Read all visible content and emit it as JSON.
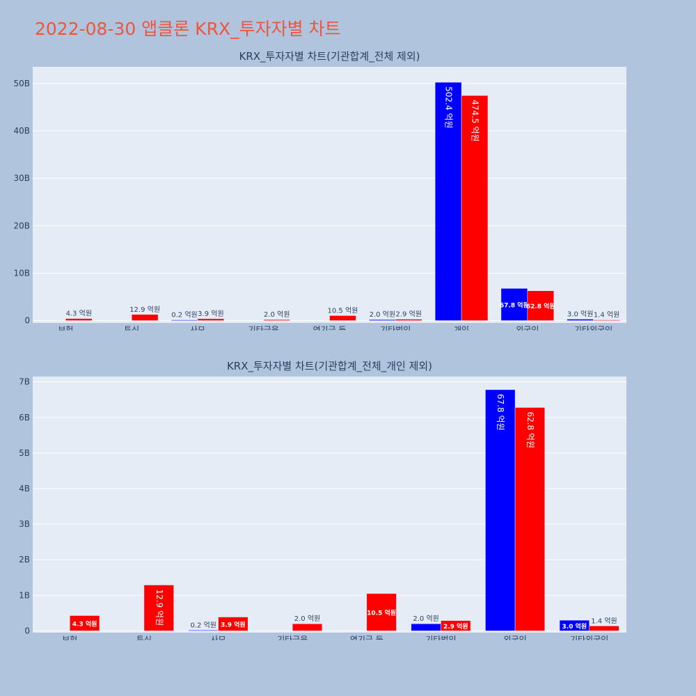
{
  "page": {
    "title": "2022-08-30 앱클론 KRX_투자자별 차트"
  },
  "colors": {
    "buy": "#0000ff",
    "sell": "#ff0000",
    "plot_bg": "#e5ecf6",
    "grid": "#ffffff",
    "text": "#2a3f5f"
  },
  "chart_data": [
    {
      "type": "bar",
      "title": "KRX_투자자별 차트(기관합계_전체 제외)",
      "categories": [
        "보험",
        "투신",
        "사모",
        "기타금융",
        "연기금 등",
        "기타법인",
        "개인",
        "외국인",
        "기타외국인"
      ],
      "series": [
        {
          "values": [
            0,
            0,
            20000000,
            0,
            0,
            200000000,
            50240000000,
            6780000000,
            300000000
          ],
          "labels": [
            "",
            "",
            "0.2 억원",
            "",
            "",
            "2.0 억원",
            "502.4 억원",
            "67.8 억원",
            "3.0 억원"
          ]
        },
        {
          "values": [
            430000000,
            1290000000,
            390000000,
            200000000,
            1050000000,
            290000000,
            47450000000,
            6280000000,
            140000000
          ],
          "labels": [
            "4.3 억원",
            "12.9 억원",
            "3.9 억원",
            "2.0 억원",
            "10.5 억원",
            "2.9 억원",
            "474.5 억원",
            "62.8 억원",
            "1.4 억원"
          ]
        }
      ],
      "ylim": [
        -500000000,
        53500000000
      ],
      "yticks": [
        0,
        10000000000,
        20000000000,
        30000000000,
        40000000000,
        50000000000
      ],
      "ytick_labels": [
        "0",
        "10B",
        "20B",
        "30B",
        "40B",
        "50B"
      ],
      "grid": true,
      "legend": "none"
    },
    {
      "type": "bar",
      "title": "KRX_투자자별 차트(기관합계_전체_개인 제외)",
      "categories": [
        "보험",
        "투신",
        "사모",
        "기타금융",
        "연기금 등",
        "기타법인",
        "외국인",
        "기타외국인"
      ],
      "series": [
        {
          "values": [
            0,
            0,
            20000000,
            0,
            0,
            200000000,
            6780000000,
            300000000
          ],
          "labels": [
            "",
            "",
            "0.2 억원",
            "",
            "",
            "2.0 억원",
            "67.8 억원",
            "3.0 억원"
          ]
        },
        {
          "values": [
            430000000,
            1290000000,
            390000000,
            200000000,
            1050000000,
            290000000,
            6280000000,
            140000000
          ],
          "labels": [
            "4.3 억원",
            "12.9 억원",
            "3.9 억원",
            "2.0 억원",
            "10.5 억원",
            "2.9 억원",
            "62.8 억원",
            "1.4 억원"
          ]
        }
      ],
      "ylim": [
        -50000000,
        7150000000
      ],
      "yticks": [
        0,
        1000000000,
        2000000000,
        3000000000,
        4000000000,
        5000000000,
        6000000000,
        7000000000
      ],
      "ytick_labels": [
        "0",
        "1B",
        "2B",
        "3B",
        "4B",
        "5B",
        "6B",
        "7B"
      ],
      "grid": true,
      "legend": "none"
    }
  ]
}
